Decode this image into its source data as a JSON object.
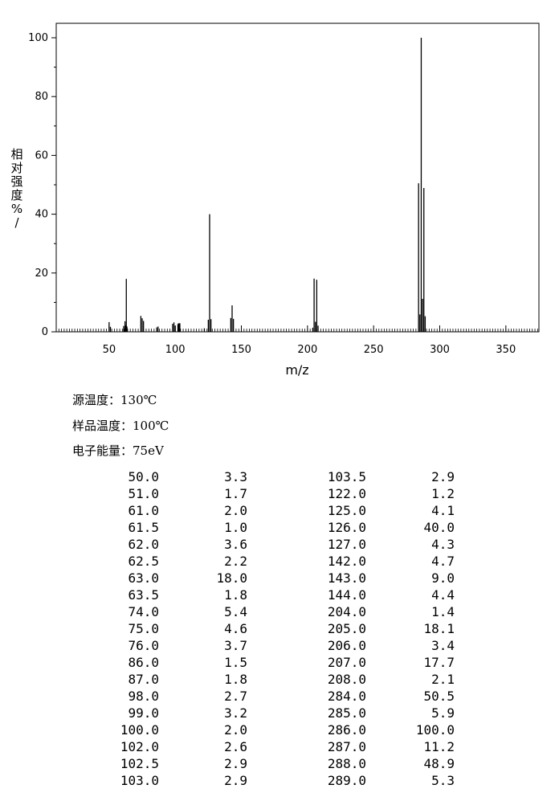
{
  "chart_data": {
    "type": "bar",
    "xlabel": "m/z",
    "ylabel": "相对强度%/",
    "xlim": [
      10,
      375
    ],
    "ylim": [
      0,
      105
    ],
    "xticks": [
      50,
      100,
      150,
      200,
      250,
      300,
      350
    ],
    "yticks": [
      0,
      20,
      40,
      60,
      80,
      100
    ],
    "grid": false,
    "peaks": [
      {
        "mz": 50.0,
        "intensity": 3.3
      },
      {
        "mz": 51.0,
        "intensity": 1.7
      },
      {
        "mz": 61.0,
        "intensity": 2.0
      },
      {
        "mz": 61.5,
        "intensity": 1.0
      },
      {
        "mz": 62.0,
        "intensity": 3.6
      },
      {
        "mz": 62.5,
        "intensity": 2.2
      },
      {
        "mz": 63.0,
        "intensity": 18.0
      },
      {
        "mz": 63.5,
        "intensity": 1.8
      },
      {
        "mz": 74.0,
        "intensity": 5.4
      },
      {
        "mz": 75.0,
        "intensity": 4.6
      },
      {
        "mz": 76.0,
        "intensity": 3.7
      },
      {
        "mz": 86.0,
        "intensity": 1.5
      },
      {
        "mz": 87.0,
        "intensity": 1.8
      },
      {
        "mz": 98.0,
        "intensity": 2.7
      },
      {
        "mz": 99.0,
        "intensity": 3.2
      },
      {
        "mz": 100.0,
        "intensity": 2.0
      },
      {
        "mz": 102.0,
        "intensity": 2.6
      },
      {
        "mz": 102.5,
        "intensity": 2.9
      },
      {
        "mz": 103.0,
        "intensity": 2.9
      },
      {
        "mz": 103.5,
        "intensity": 2.9
      },
      {
        "mz": 122.0,
        "intensity": 1.2
      },
      {
        "mz": 125.0,
        "intensity": 4.1
      },
      {
        "mz": 126.0,
        "intensity": 40.0
      },
      {
        "mz": 127.0,
        "intensity": 4.3
      },
      {
        "mz": 142.0,
        "intensity": 4.7
      },
      {
        "mz": 143.0,
        "intensity": 9.0
      },
      {
        "mz": 144.0,
        "intensity": 4.4
      },
      {
        "mz": 204.0,
        "intensity": 1.4
      },
      {
        "mz": 205.0,
        "intensity": 18.1
      },
      {
        "mz": 206.0,
        "intensity": 3.4
      },
      {
        "mz": 207.0,
        "intensity": 17.7
      },
      {
        "mz": 208.0,
        "intensity": 2.1
      },
      {
        "mz": 284.0,
        "intensity": 50.5
      },
      {
        "mz": 285.0,
        "intensity": 5.9
      },
      {
        "mz": 286.0,
        "intensity": 100.0
      },
      {
        "mz": 287.0,
        "intensity": 11.2
      },
      {
        "mz": 288.0,
        "intensity": 48.9
      },
      {
        "mz": 289.0,
        "intensity": 5.3
      }
    ]
  },
  "conditions": {
    "source_temp": "源温度：130℃",
    "sample_temp": "样品温度：100℃",
    "electron_energy": "电子能量：75eV"
  },
  "table": {
    "left": [
      [
        "50.0",
        "3.3"
      ],
      [
        "51.0",
        "1.7"
      ],
      [
        "61.0",
        "2.0"
      ],
      [
        "61.5",
        "1.0"
      ],
      [
        "62.0",
        "3.6"
      ],
      [
        "62.5",
        "2.2"
      ],
      [
        "63.0",
        "18.0"
      ],
      [
        "63.5",
        "1.8"
      ],
      [
        "74.0",
        "5.4"
      ],
      [
        "75.0",
        "4.6"
      ],
      [
        "76.0",
        "3.7"
      ],
      [
        "86.0",
        "1.5"
      ],
      [
        "87.0",
        "1.8"
      ],
      [
        "98.0",
        "2.7"
      ],
      [
        "99.0",
        "3.2"
      ],
      [
        "100.0",
        "2.0"
      ],
      [
        "102.0",
        "2.6"
      ],
      [
        "102.5",
        "2.9"
      ],
      [
        "103.0",
        "2.9"
      ]
    ],
    "right": [
      [
        "103.5",
        "2.9"
      ],
      [
        "122.0",
        "1.2"
      ],
      [
        "125.0",
        "4.1"
      ],
      [
        "126.0",
        "40.0"
      ],
      [
        "127.0",
        "4.3"
      ],
      [
        "142.0",
        "4.7"
      ],
      [
        "143.0",
        "9.0"
      ],
      [
        "144.0",
        "4.4"
      ],
      [
        "204.0",
        "1.4"
      ],
      [
        "205.0",
        "18.1"
      ],
      [
        "206.0",
        "3.4"
      ],
      [
        "207.0",
        "17.7"
      ],
      [
        "208.0",
        "2.1"
      ],
      [
        "284.0",
        "50.5"
      ],
      [
        "285.0",
        "5.9"
      ],
      [
        "286.0",
        "100.0"
      ],
      [
        "287.0",
        "11.2"
      ],
      [
        "288.0",
        "48.9"
      ],
      [
        "289.0",
        "5.3"
      ]
    ]
  }
}
